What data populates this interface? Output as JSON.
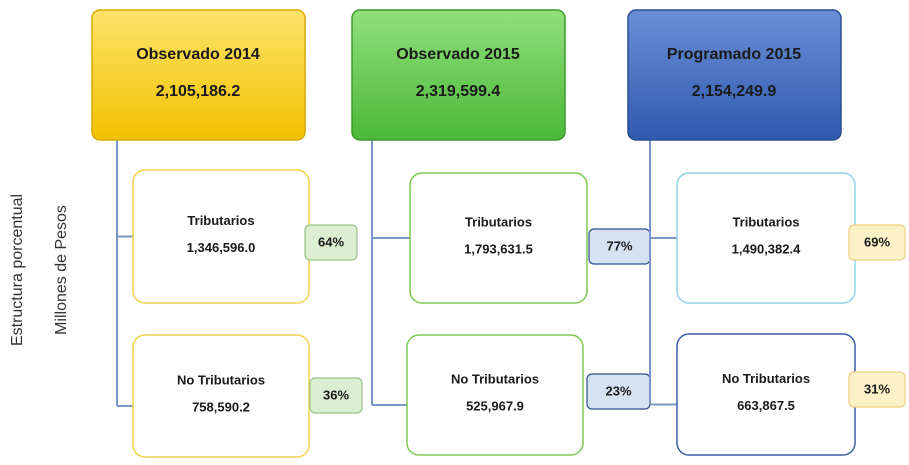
{
  "axis_labels": [
    "Estructura porcentual",
    "Millones de Pesos"
  ],
  "columns": [
    {
      "title": "Observado 2014",
      "total": "2,105,186.2",
      "items": [
        {
          "label": "Tributarios",
          "value": "1,346,596.0",
          "share": "64%"
        },
        {
          "label": "No Tributarios",
          "value": "758,590.2",
          "share": "36%"
        }
      ]
    },
    {
      "title": "Observado 2015",
      "total": "2,319,599.4",
      "items": [
        {
          "label": "Tributarios",
          "value": "1,793,631.5",
          "share": "77%"
        },
        {
          "label": "No Tributarios",
          "value": "525,967.9",
          "share": "23%"
        }
      ]
    },
    {
      "title": "Programado 2015",
      "total": "2,154,249.9",
      "items": [
        {
          "label": "Tributarios",
          "value": "1,490,382.4",
          "share": "69%"
        },
        {
          "label": "No Tributarios",
          "value": "663,867.5",
          "share": "31%"
        }
      ]
    }
  ]
}
